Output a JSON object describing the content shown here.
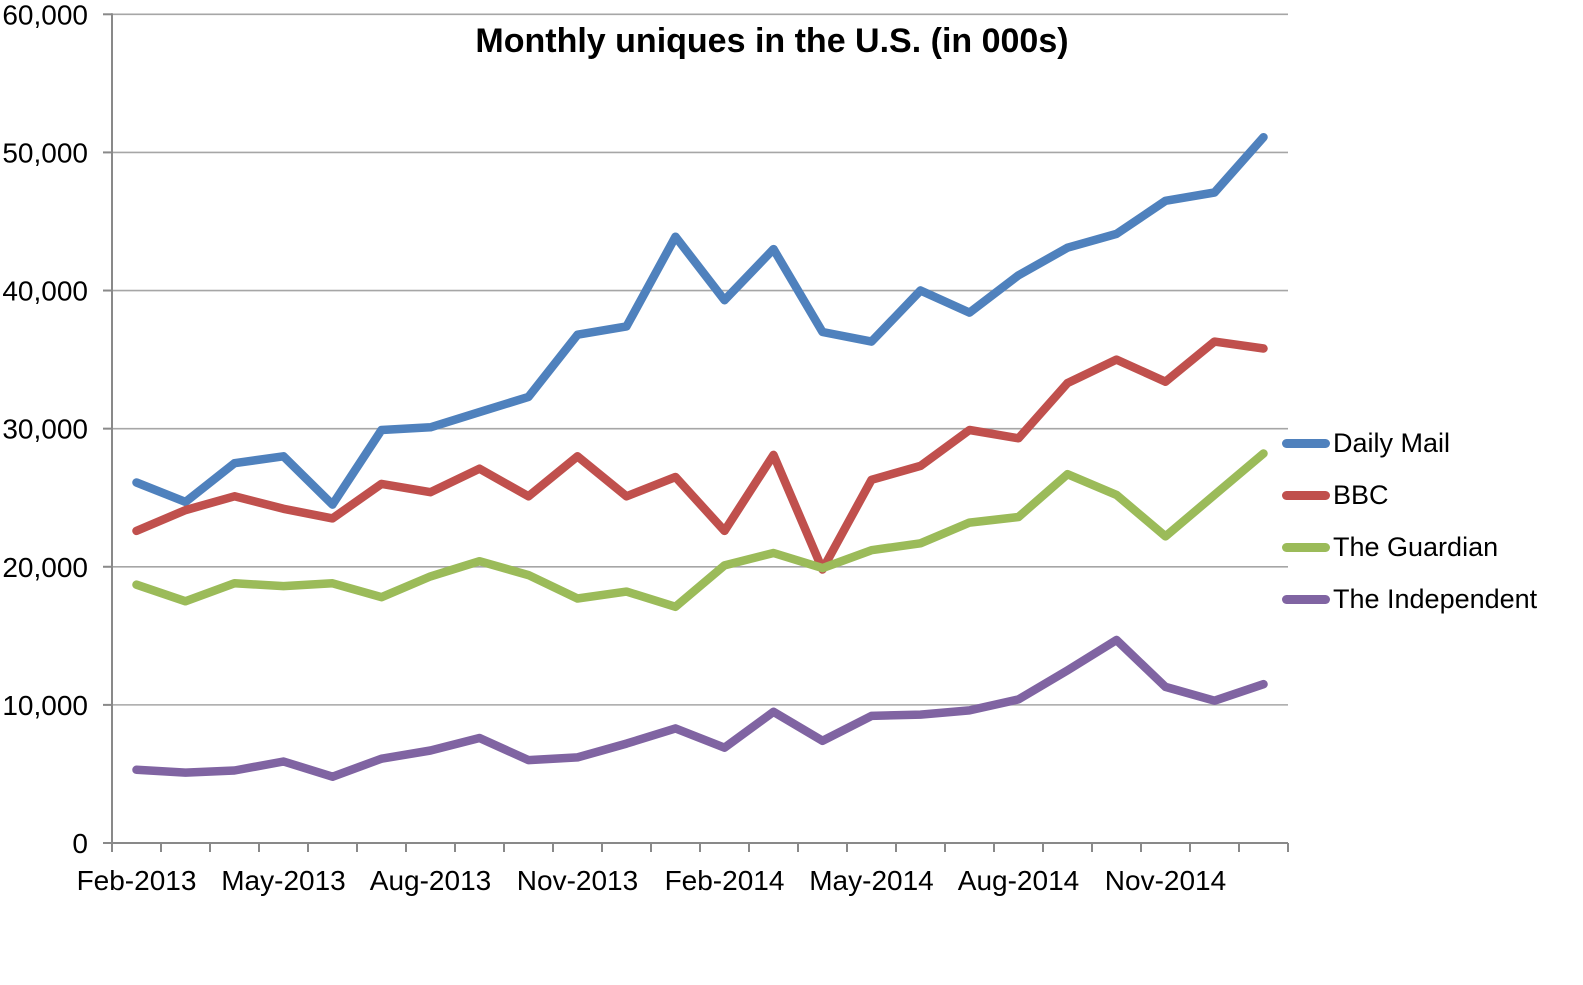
{
  "chart_data": {
    "type": "line",
    "title": "Monthly uniques in the U.S. (in 000s)",
    "categories": [
      "Feb-2013",
      "Mar-2013",
      "Apr-2013",
      "May-2013",
      "Jun-2013",
      "Jul-2013",
      "Aug-2013",
      "Sep-2013",
      "Oct-2013",
      "Nov-2013",
      "Dec-2013",
      "Jan-2014",
      "Feb-2014",
      "Mar-2014",
      "Apr-2014",
      "May-2014",
      "Jun-2014",
      "Jul-2014",
      "Aug-2014",
      "Sep-2014",
      "Oct-2014",
      "Nov-2014",
      "Dec-2014",
      "Jan-2015"
    ],
    "series": [
      {
        "name": "Daily Mail",
        "color": "#4F81BD",
        "values": [
          26100,
          24700,
          27500,
          28000,
          24500,
          29900,
          30100,
          31200,
          32300,
          36800,
          37400,
          43900,
          39300,
          43000,
          37000,
          36300,
          40000,
          38400,
          41100,
          43100,
          44100,
          46500,
          47100,
          51100
        ]
      },
      {
        "name": "BBC",
        "color": "#C0504D",
        "values": [
          22600,
          24100,
          25100,
          24200,
          23500,
          26000,
          25400,
          27100,
          25100,
          28000,
          25100,
          26500,
          22600,
          28100,
          19800,
          26300,
          27300,
          29900,
          29300,
          33300,
          35000,
          33400,
          36300,
          35800
        ]
      },
      {
        "name": "The Guardian",
        "color": "#9BBB59",
        "values": [
          18700,
          17500,
          18800,
          18600,
          18800,
          17800,
          19300,
          20400,
          19400,
          17700,
          18200,
          17100,
          20100,
          21000,
          19900,
          21200,
          21700,
          23200,
          23600,
          26700,
          25200,
          22200,
          25200,
          28200
        ]
      },
      {
        "name": "The Independent",
        "color": "#8064A2",
        "values": [
          5300,
          5100,
          5250,
          5900,
          4800,
          6100,
          6700,
          7600,
          6000,
          6200,
          7200,
          8300,
          6900,
          9500,
          7400,
          9200,
          9300,
          9600,
          10400,
          12500,
          14700,
          11300,
          10300,
          11500
        ]
      }
    ],
    "x_tick_labels": [
      "Feb-2013",
      "May-2013",
      "Aug-2013",
      "Nov-2013",
      "Feb-2014",
      "May-2014",
      "Aug-2014",
      "Nov-2014"
    ],
    "x_label_every": 3,
    "y_tick_labels": [
      "0",
      "10,000",
      "20,000",
      "30,000",
      "40,000",
      "50,000",
      "60,000"
    ],
    "y_step": 10000,
    "ylim": [
      0,
      60000
    ],
    "grid": true,
    "legend_position": "right",
    "colors": {
      "grid": "#A6A6A6",
      "axis": "#898989",
      "text": "#000000"
    }
  }
}
